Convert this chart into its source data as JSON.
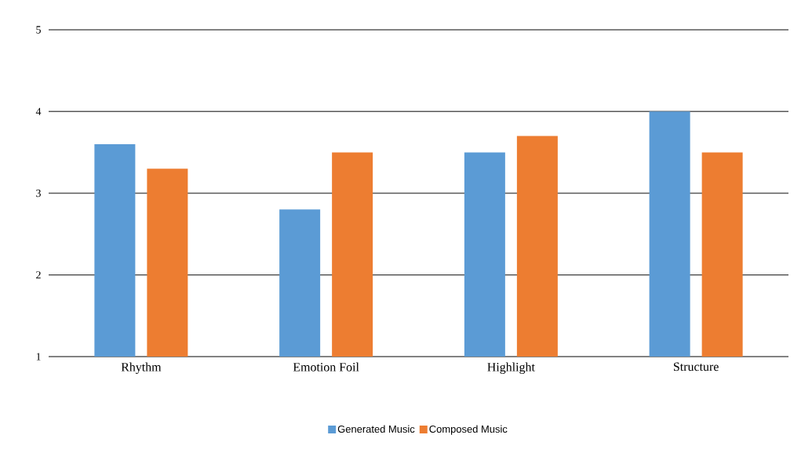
{
  "chart_data": {
    "type": "bar",
    "categories": [
      "Rhythm",
      "Emotion Foil",
      "Highlight",
      "Structure"
    ],
    "series": [
      {
        "name": "Generated Music",
        "color": "#5b9bd5",
        "values": [
          3.6,
          2.8,
          3.5,
          4.0
        ]
      },
      {
        "name": "Composed Music",
        "color": "#ed7d31",
        "values": [
          3.3,
          3.5,
          3.7,
          3.5
        ]
      }
    ],
    "ylim": [
      1,
      5
    ],
    "yticks": [
      1,
      2,
      3,
      4,
      5
    ],
    "grid": "y",
    "legend": "bottom"
  }
}
